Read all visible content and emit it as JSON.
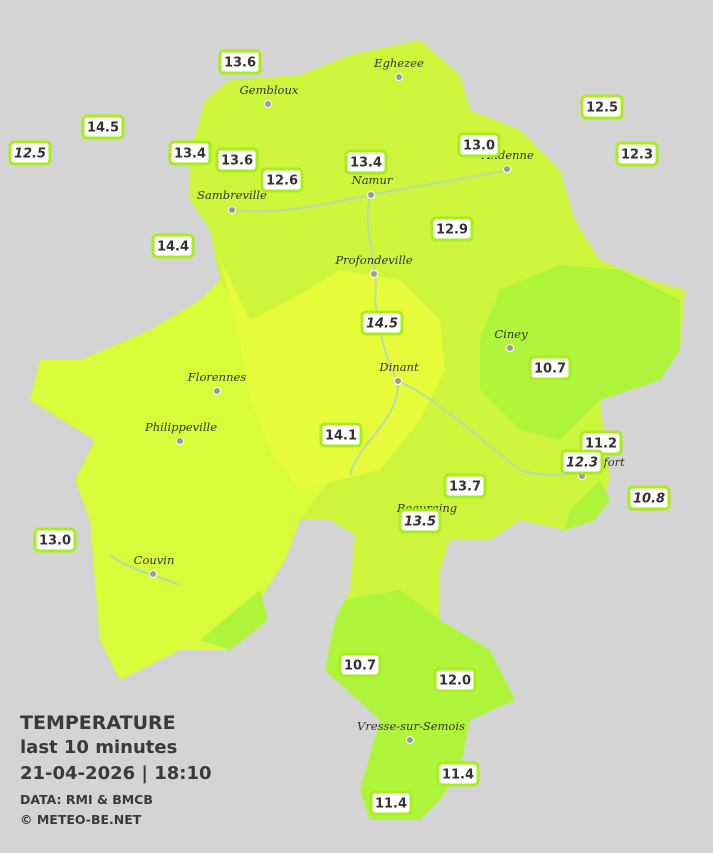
{
  "legend": {
    "title": "TEMPERATURE",
    "subtitle": "last 10 minutes",
    "date_time": "21-04-2026  |  18:10",
    "source": "DATA: RMI & BMCB",
    "copyright": "© METEO-BE.NET"
  },
  "cities": [
    "Eghezee",
    "Gembloux",
    "Andenne",
    "Namur",
    "Sambreville",
    "Profondeville",
    "Ciney",
    "Dinant",
    "Florennes",
    "Philippeville",
    "Beauraing",
    "Rochefort",
    "Couvin",
    "Vresse-sur-Semois"
  ],
  "stations": [
    {
      "value": "13.6",
      "italic": false
    },
    {
      "value": "14.5",
      "italic": false
    },
    {
      "value": "12.5",
      "italic": true
    },
    {
      "value": "13.4",
      "italic": false
    },
    {
      "value": "13.6",
      "italic": false
    },
    {
      "value": "12.6",
      "italic": false
    },
    {
      "value": "13.4",
      "italic": false
    },
    {
      "value": "13.0",
      "italic": false
    },
    {
      "value": "12.5",
      "italic": false
    },
    {
      "value": "12.3",
      "italic": false
    },
    {
      "value": "14.4",
      "italic": false
    },
    {
      "value": "12.9",
      "italic": false
    },
    {
      "value": "14.5",
      "italic": true
    },
    {
      "value": "10.7",
      "italic": false
    },
    {
      "value": "14.1",
      "italic": false
    },
    {
      "value": "11.2",
      "italic": false
    },
    {
      "value": "12.3",
      "italic": true
    },
    {
      "value": "10.8",
      "italic": true
    },
    {
      "value": "13.7",
      "italic": false
    },
    {
      "value": "13.5",
      "italic": true
    },
    {
      "value": "13.0",
      "italic": false
    },
    {
      "value": "10.7",
      "italic": false
    },
    {
      "value": "12.0",
      "italic": false
    },
    {
      "value": "11.4",
      "italic": false
    },
    {
      "value": "11.4",
      "italic": false
    }
  ]
}
